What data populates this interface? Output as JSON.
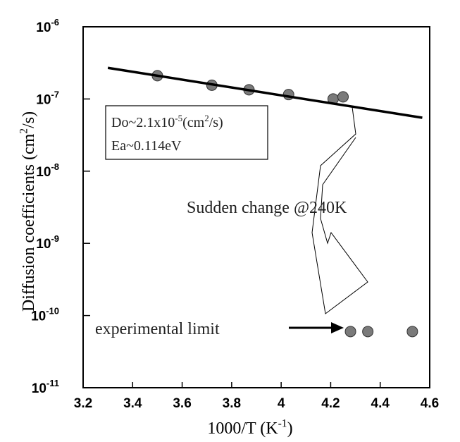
{
  "chart_data": {
    "type": "scatter",
    "log_y": true,
    "xlabel": [
      {
        "text": "1000/T (K"
      },
      {
        "text": "-1",
        "sup": true
      },
      {
        "text": ")"
      }
    ],
    "ylabel": [
      {
        "text": "Diffusion coefficients (cm"
      },
      {
        "text": "2",
        "sup": true
      },
      {
        "text": "/s)"
      }
    ],
    "xlim": [
      3.2,
      4.6
    ],
    "xticks": [
      3.2,
      3.4,
      3.6,
      3.8,
      4,
      4.2,
      4.4,
      4.6
    ],
    "ylim": [
      1e-11,
      1e-06
    ],
    "yticks": [
      {
        "value": 1e-11,
        "label": "10",
        "exponent": "-11"
      },
      {
        "value": 1e-10,
        "label": "10",
        "exponent": "-10"
      },
      {
        "value": 1e-09,
        "label": "10",
        "exponent": "-9"
      },
      {
        "value": 1e-08,
        "label": "10",
        "exponent": "-8"
      },
      {
        "value": 1e-07,
        "label": "10",
        "exponent": "-7"
      },
      {
        "value": 1e-06,
        "label": "10",
        "exponent": "-6"
      }
    ],
    "series": [
      {
        "type": "scatter",
        "color": "#7a7a7a",
        "x": [
          3.5,
          3.72,
          3.87,
          4.03,
          4.21,
          4.25,
          4.28,
          4.35,
          4.53
        ],
        "values": [
          2.1e-07,
          1.55e-07,
          1.34e-07,
          1.15e-07,
          1e-07,
          1.07e-07,
          6e-11,
          6e-11,
          6e-11
        ]
      },
      {
        "type": "line",
        "color": "#000000",
        "x": [
          3.3,
          4.57
        ],
        "values": [
          2.7e-07,
          5.5e-08
        ]
      }
    ],
    "box": [
      [
        {
          "text": "Do~2.1x10"
        },
        {
          "text": "-5",
          "sup": true
        },
        {
          "text": "(cm"
        },
        {
          "text": "2",
          "sup": true
        },
        {
          "text": "/s)"
        }
      ],
      [
        {
          "text": "Ea~0.114eV"
        }
      ]
    ],
    "annotations": [
      {
        "text": "Sudden change @240K"
      },
      {
        "text": "experimental limit"
      }
    ]
  }
}
